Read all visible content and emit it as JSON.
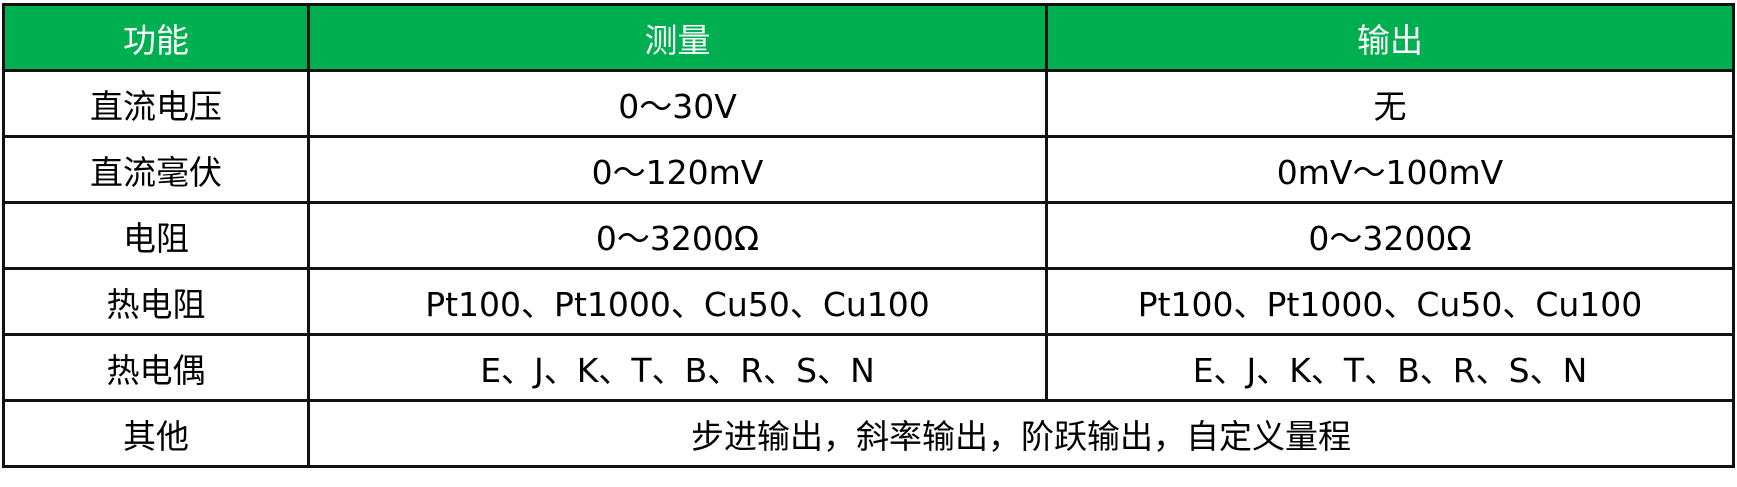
{
  "colors": {
    "header_bg": "#00AF50",
    "header_text": "#FFFFFF"
  },
  "headers": [
    "功能",
    "测量",
    "输出"
  ],
  "rows": [
    {
      "function": "直流电压",
      "measure": "0～30V",
      "output": "无"
    },
    {
      "function": "直流毫伏",
      "measure": "0～120mV",
      "output": "0mV～100mV"
    },
    {
      "function": "电阻",
      "measure": "0～3200Ω",
      "output": "0～3200Ω"
    },
    {
      "function": "热电阻",
      "measure": "Pt100、Pt1000、Cu50、Cu100",
      "output": "Pt100、Pt1000、Cu50、Cu100"
    },
    {
      "function": "热电偶",
      "measure": "E、J、K、T、B、R、S、N",
      "output": "E、J、K、T、B、R、S、N"
    }
  ],
  "other": {
    "function": "其他",
    "value": "步进输出，斜率输出，阶跃输出，自定义量程"
  }
}
